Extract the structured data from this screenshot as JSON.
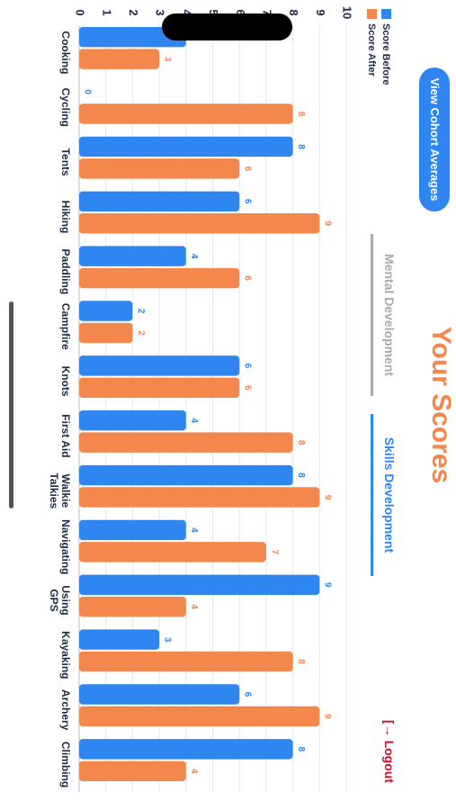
{
  "header": {
    "title": "Your Scores",
    "button": "View Cohort Averages",
    "logout": "Logout"
  },
  "tabs": [
    "Mental Development",
    "Skills Development"
  ],
  "chart_data": {
    "type": "bar",
    "categories": [
      "Cooking",
      "Cycling",
      "Tents",
      "Hiking",
      "Paddling",
      "Campfire",
      "Knots",
      "First Aid",
      "Walkie Talkies",
      "Navigating",
      "Using GPS",
      "Kayaking",
      "Archery",
      "Climbing"
    ],
    "series": [
      {
        "name": "Score Before",
        "color": "#2f86f0",
        "values": [
          4,
          0,
          8,
          6,
          4,
          2,
          6,
          4,
          8,
          4,
          9,
          3,
          6,
          8
        ]
      },
      {
        "name": "Score After",
        "color": "#f4874b",
        "values": [
          3,
          8,
          6,
          9,
          6,
          2,
          6,
          8,
          9,
          7,
          4,
          8,
          9,
          4
        ]
      }
    ],
    "ylim": [
      0,
      10
    ],
    "yticks": [
      0,
      1,
      2,
      3,
      4,
      5,
      6,
      7,
      8,
      9,
      10
    ],
    "grid": true,
    "legend": "top-left"
  }
}
